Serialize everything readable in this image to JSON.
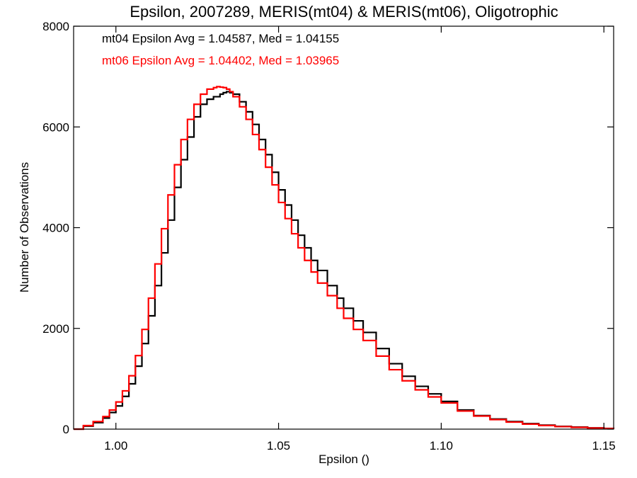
{
  "chart_data": {
    "type": "line",
    "title": "Epsilon, 2007289, MERIS(mt04) & MERIS(mt06), Oligotrophic",
    "xlabel": "Epsilon ()",
    "ylabel": "Number of Observations",
    "xlim": [
      0.987,
      1.153
    ],
    "ylim": [
      0,
      8000
    ],
    "x_ticks": [
      1.0,
      1.05,
      1.1,
      1.15
    ],
    "x_tick_labels": [
      "1.00",
      "1.05",
      "1.10",
      "1.15"
    ],
    "y_ticks": [
      0,
      2000,
      4000,
      6000,
      8000
    ],
    "y_tick_labels": [
      "0",
      "2000",
      "4000",
      "6000",
      "8000"
    ],
    "grid": false,
    "step": true,
    "annotations": [
      {
        "text": "mt04 Epsilon Avg = 1.04587, Med = 1.04155",
        "color": "#000000"
      },
      {
        "text": "mt06 Epsilon Avg = 1.04402, Med = 1.03965",
        "color": "#ff0000"
      }
    ],
    "series": [
      {
        "color": "#000000",
        "x": [
          0.987,
          0.99,
          0.993,
          0.996,
          0.998,
          1.0,
          1.002,
          1.004,
          1.006,
          1.008,
          1.01,
          1.012,
          1.014,
          1.016,
          1.018,
          1.02,
          1.022,
          1.024,
          1.026,
          1.028,
          1.03,
          1.032,
          1.033,
          1.034,
          1.035,
          1.036,
          1.038,
          1.04,
          1.042,
          1.044,
          1.046,
          1.048,
          1.05,
          1.052,
          1.054,
          1.056,
          1.058,
          1.06,
          1.062,
          1.065,
          1.068,
          1.07,
          1.073,
          1.076,
          1.08,
          1.084,
          1.088,
          1.092,
          1.096,
          1.1,
          1.105,
          1.11,
          1.115,
          1.12,
          1.125,
          1.13,
          1.135,
          1.14,
          1.145,
          1.15,
          1.153
        ],
        "y": [
          0,
          60,
          130,
          220,
          330,
          460,
          650,
          900,
          1250,
          1700,
          2250,
          2850,
          3500,
          4150,
          4800,
          5350,
          5800,
          6200,
          6450,
          6550,
          6600,
          6650,
          6680,
          6700,
          6680,
          6650,
          6500,
          6300,
          6050,
          5750,
          5450,
          5100,
          4750,
          4450,
          4150,
          3850,
          3600,
          3350,
          3150,
          2850,
          2600,
          2400,
          2150,
          1920,
          1600,
          1300,
          1050,
          850,
          700,
          550,
          380,
          270,
          200,
          150,
          110,
          80,
          55,
          40,
          25,
          15,
          10
        ]
      },
      {
        "color": "#ff0000",
        "x": [
          0.987,
          0.99,
          0.993,
          0.996,
          0.998,
          1.0,
          1.002,
          1.004,
          1.006,
          1.008,
          1.01,
          1.012,
          1.014,
          1.016,
          1.018,
          1.02,
          1.022,
          1.024,
          1.026,
          1.028,
          1.03,
          1.031,
          1.032,
          1.033,
          1.034,
          1.035,
          1.036,
          1.038,
          1.04,
          1.042,
          1.044,
          1.046,
          1.048,
          1.05,
          1.052,
          1.054,
          1.056,
          1.058,
          1.06,
          1.062,
          1.065,
          1.068,
          1.07,
          1.073,
          1.076,
          1.08,
          1.084,
          1.088,
          1.092,
          1.096,
          1.1,
          1.105,
          1.11,
          1.115,
          1.12,
          1.125,
          1.13,
          1.135,
          1.14,
          1.145,
          1.15,
          1.153
        ],
        "y": [
          0,
          70,
          150,
          250,
          380,
          540,
          760,
          1060,
          1460,
          1980,
          2600,
          3280,
          3980,
          4650,
          5250,
          5750,
          6150,
          6450,
          6650,
          6750,
          6780,
          6800,
          6790,
          6780,
          6750,
          6700,
          6600,
          6400,
          6150,
          5850,
          5550,
          5200,
          4850,
          4500,
          4180,
          3880,
          3600,
          3350,
          3120,
          2900,
          2650,
          2400,
          2200,
          1980,
          1760,
          1450,
          1180,
          960,
          780,
          640,
          520,
          360,
          260,
          190,
          140,
          100,
          72,
          50,
          35,
          22,
          12,
          8
        ]
      }
    ]
  }
}
